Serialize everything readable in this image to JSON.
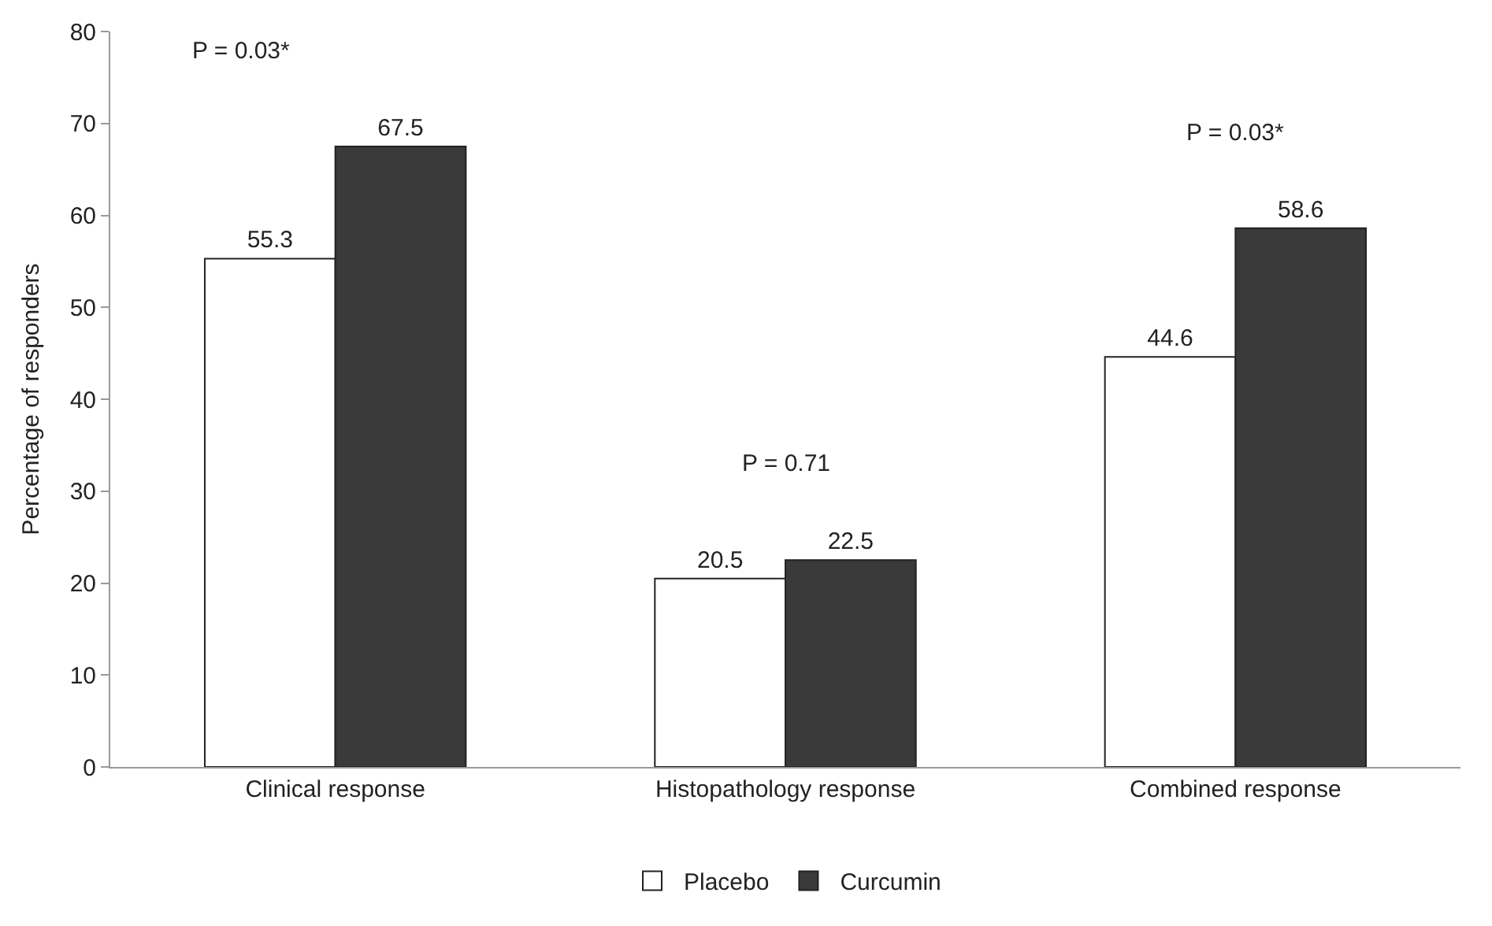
{
  "chart_data": {
    "type": "bar",
    "ylabel": "Percentage of responders",
    "categories": [
      "Clinical response",
      "Histopathology response",
      "Combined response"
    ],
    "series": [
      {
        "name": "Placebo",
        "color": "#ffffff",
        "values": [
          55.3,
          20.5,
          44.6
        ]
      },
      {
        "name": "Curcumin",
        "color": "#3a3a3a",
        "values": [
          67.5,
          22.5,
          58.6
        ]
      }
    ],
    "ylim": [
      0,
      80
    ],
    "yticks": [
      0,
      10,
      20,
      30,
      40,
      50,
      60,
      70,
      80
    ],
    "data_labels": true,
    "legend": "bottom",
    "annotations": [
      "P = 0.03*",
      "P = 0.71",
      "P = 0.03*"
    ]
  }
}
